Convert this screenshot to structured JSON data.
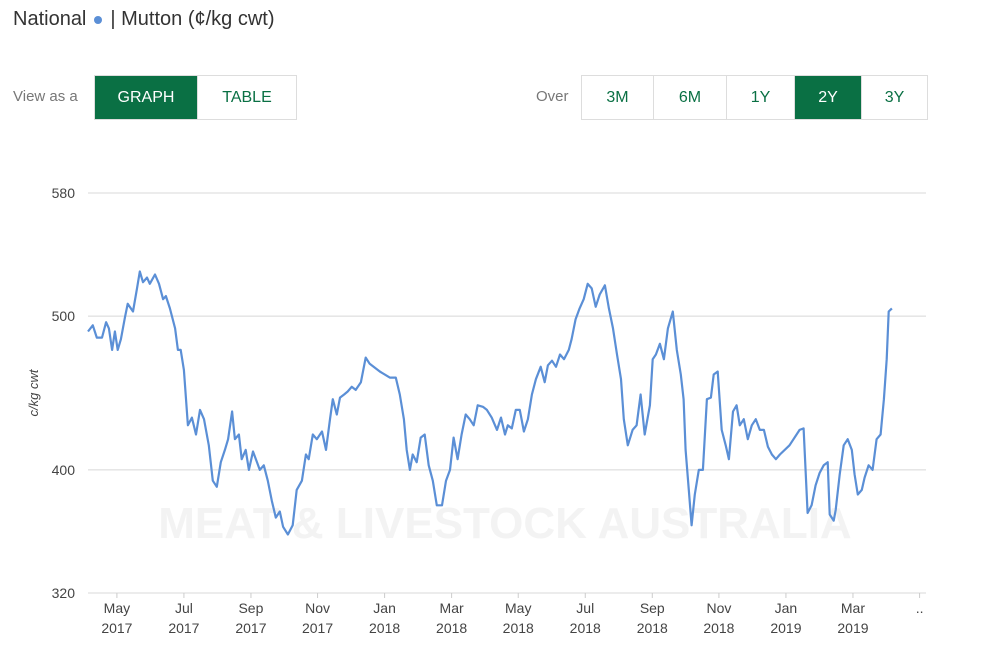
{
  "header": {
    "title": "National",
    "subtitle": "| Mutton (¢/kg cwt)"
  },
  "view": {
    "label": "View as a",
    "options": [
      "GRAPH",
      "TABLE"
    ],
    "active": 0
  },
  "period": {
    "label": "Over",
    "options": [
      "3M",
      "6M",
      "1Y",
      "2Y",
      "3Y"
    ],
    "active": 3
  },
  "chart_data": {
    "type": "line",
    "ylabel": "c/kg cwt",
    "watermark": "MEAT & LIVESTOCK AUSTRALIA",
    "color": "#5b8fd6",
    "grid": true,
    "ylim": [
      320,
      580
    ],
    "yticks": [
      320,
      400,
      500,
      580
    ],
    "xlim": [
      2017.261,
      2019.349
    ],
    "xticks": [
      {
        "value": 2017.333,
        "label": "May 2017"
      },
      {
        "value": 2017.5,
        "label": "Jul 2017"
      },
      {
        "value": 2017.667,
        "label": "Sep 2017"
      },
      {
        "value": 2017.833,
        "label": "Nov 2017"
      },
      {
        "value": 2018,
        "label": "Jan 2018"
      },
      {
        "value": 2018.167,
        "label": "Mar 2018"
      },
      {
        "value": 2018.333,
        "label": "May 2018"
      },
      {
        "value": 2018.5,
        "label": "Jul 2018"
      },
      {
        "value": 2018.667,
        "label": "Sep 2018"
      },
      {
        "value": 2018.833,
        "label": "Nov 2018"
      },
      {
        "value": 2019,
        "label": "Jan 2019"
      },
      {
        "value": 2019.167,
        "label": "Mar 2019"
      },
      {
        "value": 2019.333,
        "label": ".."
      }
    ],
    "x": [
      2017.261,
      2017.273,
      2017.283,
      2017.296,
      2017.306,
      2017.313,
      2017.321,
      2017.328,
      2017.335,
      2017.343,
      2017.353,
      2017.36,
      2017.373,
      2017.383,
      2017.39,
      2017.398,
      2017.408,
      2017.415,
      2017.428,
      2017.438,
      2017.448,
      2017.455,
      2017.465,
      2017.478,
      2017.485,
      2017.492,
      2017.5,
      2017.51,
      2017.52,
      2017.53,
      2017.54,
      2017.55,
      2017.562,
      2017.572,
      2017.582,
      2017.592,
      2017.602,
      2017.61,
      2017.62,
      2017.627,
      2017.637,
      2017.644,
      2017.654,
      2017.662,
      2017.672,
      2017.682,
      2017.689,
      2017.699,
      2017.709,
      2017.719,
      2017.729,
      2017.739,
      2017.747,
      2017.759,
      2017.771,
      2017.781,
      2017.794,
      2017.804,
      2017.811,
      2017.821,
      2017.831,
      2017.844,
      2017.854,
      2017.864,
      2017.871,
      2017.881,
      2017.889,
      2017.899,
      2017.908,
      2017.918,
      2017.928,
      2017.941,
      2017.953,
      2017.963,
      2017.988,
      2018.013,
      2018.028,
      2018.038,
      2018.048,
      2018.055,
      2018.063,
      2018.07,
      2018.08,
      2018.09,
      2018.1,
      2018.11,
      2018.12,
      2018.13,
      2018.143,
      2018.153,
      2018.163,
      2018.172,
      2018.182,
      2018.192,
      2018.202,
      2018.212,
      2018.222,
      2018.232,
      2018.245,
      2018.255,
      2018.267,
      2018.28,
      2018.29,
      2018.3,
      2018.307,
      2018.317,
      2018.327,
      2018.337,
      2018.347,
      2018.357,
      2018.367,
      2018.377,
      2018.389,
      2018.399,
      2018.407,
      2018.417,
      2018.427,
      2018.437,
      2018.447,
      2018.459,
      2018.466,
      2018.476,
      2018.486,
      2018.496,
      2018.506,
      2018.516,
      2018.526,
      2018.536,
      2018.549,
      2018.559,
      2018.569,
      2018.579,
      2018.589,
      2018.596,
      2018.606,
      2018.618,
      2018.628,
      2018.638,
      2018.648,
      2018.661,
      2018.668,
      2018.676,
      2018.686,
      2018.696,
      2018.706,
      2018.718,
      2018.728,
      2018.738,
      2018.745,
      2018.75,
      2018.758,
      2018.765,
      2018.773,
      2018.783,
      2018.793,
      2018.803,
      2018.813,
      2018.82,
      2018.83,
      2018.84,
      2018.85,
      2018.858,
      2018.868,
      2018.877,
      2018.885,
      2018.895,
      2018.905,
      2018.915,
      2018.925,
      2018.935,
      2018.945,
      2018.955,
      2018.965,
      2018.975,
      2018.985,
      2019.009,
      2019.034,
      2019.044,
      2019.054,
      2019.064,
      2019.074,
      2019.084,
      2019.094,
      2019.104,
      2019.109,
      2019.119,
      2019.124,
      2019.134,
      2019.144,
      2019.154,
      2019.164,
      2019.171,
      2019.179,
      2019.189,
      2019.196,
      2019.206,
      2019.216,
      2019.226,
      2019.236,
      2019.244,
      2019.251,
      2019.256,
      2019.264
    ],
    "values": [
      490,
      494,
      486,
      486,
      496,
      492,
      478,
      490,
      478,
      485,
      499,
      508,
      503,
      518,
      529,
      522,
      525,
      521,
      527,
      521,
      511,
      513,
      505,
      492,
      478,
      478,
      465,
      429,
      434,
      423,
      439,
      433,
      416,
      393,
      389,
      405,
      413,
      420,
      438,
      420,
      423,
      407,
      413,
      400,
      412,
      405,
      400,
      403,
      393,
      380,
      369,
      373,
      363,
      358,
      364,
      387,
      393,
      410,
      407,
      423,
      420,
      425,
      413,
      433,
      446,
      436,
      447,
      449,
      451,
      454,
      452,
      457,
      473,
      469,
      464,
      460,
      460,
      449,
      433,
      413,
      400,
      410,
      405,
      421,
      423,
      403,
      393,
      377,
      377,
      393,
      400,
      421,
      407,
      423,
      436,
      433,
      429,
      442,
      441,
      439,
      434,
      426,
      434,
      423,
      429,
      427,
      439,
      439,
      425,
      433,
      449,
      459,
      467,
      457,
      468,
      471,
      467,
      475,
      472,
      478,
      485,
      498,
      505,
      511,
      521,
      518,
      506,
      514,
      520,
      505,
      492,
      475,
      459,
      433,
      416,
      426,
      429,
      449,
      423,
      442,
      472,
      475,
      482,
      472,
      492,
      503,
      478,
      462,
      446,
      413,
      387,
      364,
      384,
      400,
      400,
      446,
      447,
      462,
      464,
      426,
      416,
      407,
      438,
      442,
      429,
      433,
      420,
      429,
      433,
      426,
      426,
      415,
      410,
      407,
      410,
      416,
      426,
      427,
      372,
      377,
      390,
      398,
      403,
      405,
      371,
      367,
      374,
      397,
      416,
      420,
      413,
      397,
      384,
      387,
      395,
      403,
      400,
      420,
      423,
      446,
      472,
      503,
      505
    ]
  }
}
